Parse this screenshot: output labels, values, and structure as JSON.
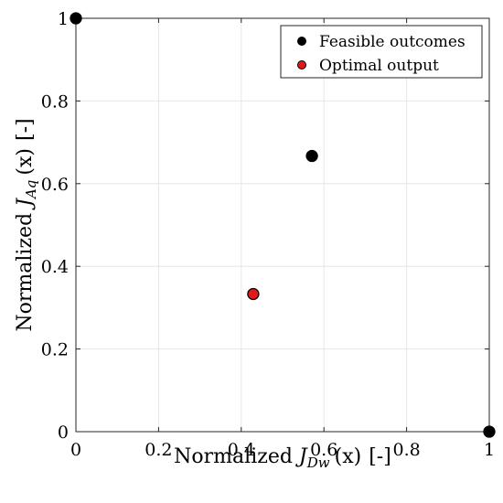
{
  "chart_data": {
    "type": "scatter",
    "xlim": [
      0,
      1
    ],
    "ylim": [
      0,
      1
    ],
    "xticks": [
      "0",
      "0.2",
      "0.4",
      "0.6",
      "0.8",
      "1"
    ],
    "yticks": [
      "0",
      "0.2",
      "0.4",
      "0.6",
      "0.8",
      "1"
    ],
    "xlabel": {
      "prefix": "Normalized ",
      "symbol": "J",
      "subscript": "Dw",
      "arg": "(x)",
      "unit": "[-]"
    },
    "ylabel": {
      "prefix": "Normalized ",
      "symbol": "J",
      "subscript": "Aq",
      "arg": "(x)",
      "unit": "[-]"
    },
    "grid": true,
    "legend_position": "top-right",
    "series": [
      {
        "name": "Feasible outcomes",
        "color": "#000000",
        "points": [
          {
            "x": 0,
            "y": 1
          },
          {
            "x": 0.571,
            "y": 0.667
          },
          {
            "x": 1,
            "y": 0
          }
        ]
      },
      {
        "name": "Optimal output",
        "color": "#e0191a",
        "points": [
          {
            "x": 0.429,
            "y": 0.333
          }
        ]
      }
    ]
  }
}
